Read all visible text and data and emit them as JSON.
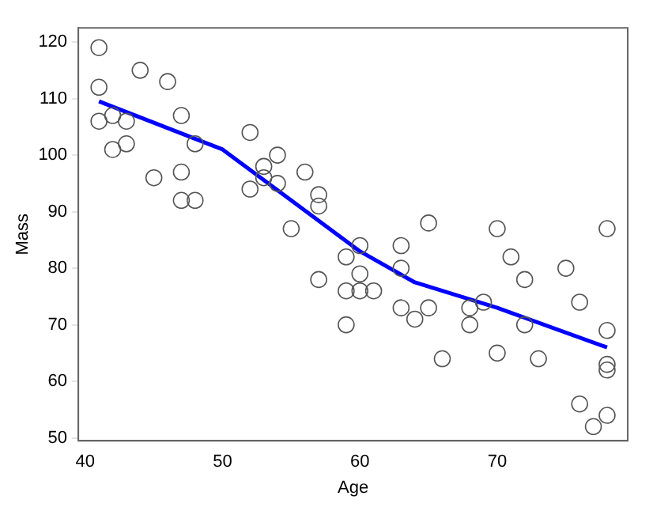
{
  "chart_data": {
    "type": "scatter",
    "xlabel": "Age",
    "ylabel": "Mass",
    "xlim": [
      39.5,
      79.5
    ],
    "ylim": [
      49.5,
      122.5
    ],
    "xticks": [
      40,
      50,
      60,
      70
    ],
    "yticks": [
      50,
      60,
      70,
      80,
      90,
      100,
      110,
      120
    ],
    "grid": false,
    "legend": false,
    "series": [
      {
        "color": "#555555",
        "marker": "circle",
        "x": [
          41,
          41,
          41,
          42,
          42,
          43,
          43,
          44,
          45,
          46,
          47,
          47,
          47,
          48,
          48,
          52,
          52,
          53,
          53,
          54,
          54,
          55,
          56,
          57,
          57,
          57,
          59,
          59,
          59,
          60,
          60,
          60,
          61,
          63,
          63,
          63,
          64,
          65,
          65,
          66,
          68,
          68,
          69,
          70,
          70,
          71,
          72,
          72,
          73,
          75,
          76,
          76,
          77,
          78,
          78,
          78,
          78,
          78
        ],
        "values": [
          119,
          112,
          106,
          107,
          101,
          106,
          102,
          115,
          96,
          113,
          107,
          97,
          92,
          102,
          92,
          104,
          94,
          98,
          96,
          100,
          95,
          87,
          97,
          93,
          91,
          78,
          82,
          76,
          70,
          84,
          79,
          76,
          76,
          84,
          80,
          73,
          71,
          88,
          73,
          64,
          73,
          70,
          74,
          87,
          65,
          82,
          78,
          70,
          64,
          80,
          74,
          56,
          52,
          87,
          69,
          63,
          62,
          54
        ]
      },
      {
        "type": "line",
        "color": "#0000ff",
        "marker": "none",
        "x": [
          41,
          50,
          60,
          64,
          70,
          78
        ],
        "values": [
          109.5,
          101,
          83,
          77.5,
          73,
          66
        ]
      }
    ]
  }
}
